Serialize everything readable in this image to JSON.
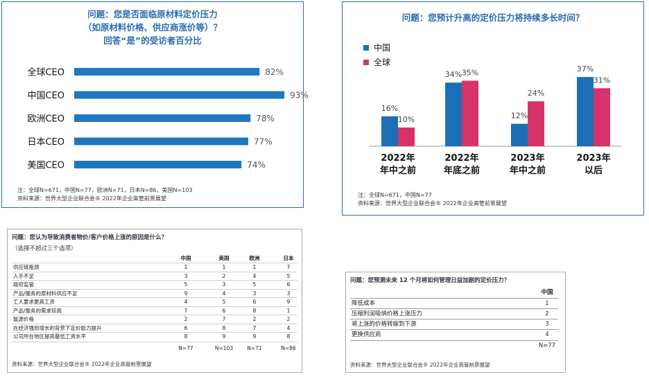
{
  "chart_data": [
    {
      "type": "bar",
      "orientation": "horizontal",
      "title_lines": [
        "问题：您是否面临原材料定价压力",
        "（如原材料价格、供应商涨价等）？",
        "回答“是”的受访者百分比"
      ],
      "categories": [
        "全球CEO",
        "中国CEO",
        "欧洲CEO",
        "日本CEO",
        "美国CEO"
      ],
      "values": [
        82,
        93,
        78,
        77,
        74
      ],
      "value_labels": [
        "82%",
        "93%",
        "78%",
        "77%",
        "74%"
      ],
      "xlim": [
        0,
        100
      ],
      "color": "#1f77c1",
      "notes": [
        "注：全球N=671，中国N=77，欧洲N=71，日本N=86，美国N=103",
        "资料来源：世界大型企业联合会® 2022年企业高管前景展望"
      ]
    },
    {
      "type": "bar",
      "title": "问题：您预计升高的定价压力将持续多长时间？",
      "categories": [
        [
          "2022年",
          "年中之前"
        ],
        [
          "2022年",
          "年底之前"
        ],
        [
          "2023年",
          "年中之前"
        ],
        [
          "2023年",
          "以后"
        ]
      ],
      "series": [
        {
          "name": "中国",
          "color": "#1c6fb6",
          "values": [
            16,
            34,
            12,
            37
          ],
          "labels": [
            "16%",
            "34%",
            "12%",
            "37%"
          ]
        },
        {
          "name": "全球",
          "color": "#d6336a",
          "values": [
            10,
            35,
            24,
            31
          ],
          "labels": [
            "10%",
            "35%",
            "24%",
            "31%"
          ]
        }
      ],
      "ylim": [
        0,
        40
      ],
      "legend": "top-left",
      "notes": [
        "注：全球N=671，中国N=77",
        "资料来源：世界大型企业联合会® 2022年企业高管前景展望"
      ]
    },
    {
      "type": "table",
      "title_lines": [
        "问题：您认为导致消费者物价/客户价格上涨的原因是什么？",
        "（选择不超过三个选项）"
      ],
      "columns": [
        "中国",
        "美国",
        "欧洲",
        "日本"
      ],
      "rows": [
        {
          "label": "供应链瓶颈",
          "values": [
            "1",
            "1",
            "1",
            "7"
          ]
        },
        {
          "label": "人手不足",
          "values": [
            "3",
            "2",
            "4",
            "5"
          ]
        },
        {
          "label": "政府监管",
          "values": [
            "5",
            "3",
            "5",
            "6"
          ]
        },
        {
          "label": "产品/服务的原材料供应不足",
          "values": [
            "9",
            "4",
            "3",
            "3"
          ]
        },
        {
          "label": "工人要求更高工资",
          "values": [
            "4",
            "5",
            "6",
            "9"
          ]
        },
        {
          "label": "产品/服务的需求较高",
          "values": [
            "7",
            "6",
            "8",
            "1"
          ]
        },
        {
          "label": "能源价格",
          "values": [
            "2",
            "7",
            "2",
            "2"
          ]
        },
        {
          "label": "在经济强劲增长的背景下定价能力提升",
          "values": [
            "6",
            "8",
            "7",
            "4"
          ]
        },
        {
          "label": "公司所在地区提高最低工资水平",
          "values": [
            "8",
            "9",
            "9",
            "8"
          ]
        }
      ],
      "footer": [
        "N=77",
        "N=103",
        "N=71",
        "N=86"
      ],
      "source": "资料来源：世界大型企业联合会® 2022年企业高管前景展望"
    },
    {
      "type": "table",
      "title": "问题：您预测未来 12 个月将如何管理日益加剧的定价压力？",
      "columns": [
        "中国"
      ],
      "rows": [
        {
          "label": "降低成本",
          "values": [
            "1"
          ]
        },
        {
          "label": "压缩利润吸纳价格上涨压力",
          "values": [
            "2"
          ]
        },
        {
          "label": "将上涨的价格转嫁到下游",
          "values": [
            "3"
          ]
        },
        {
          "label": "更换供应商",
          "values": [
            "4"
          ]
        }
      ],
      "footer": [
        "N=77"
      ],
      "source": "资料来源：世界大型企业联合会® 2022年企业高管前景展望"
    }
  ]
}
